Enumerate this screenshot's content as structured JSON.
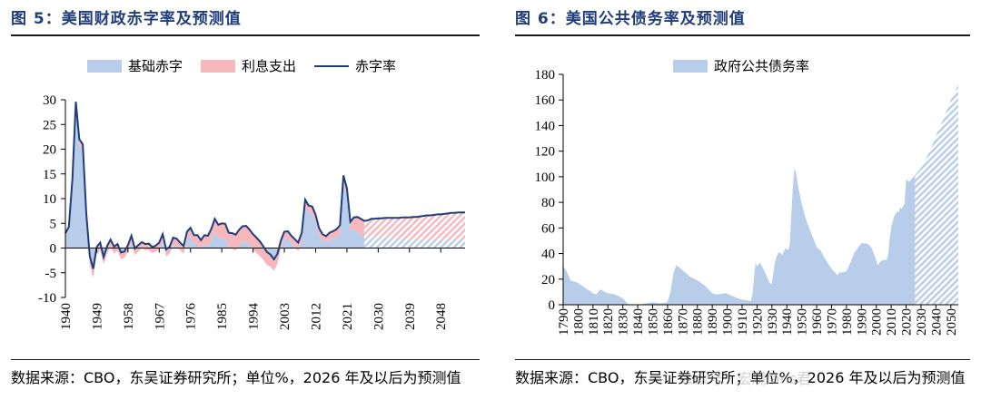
{
  "left": {
    "title": "图 5：美国财政赤字率及预测值",
    "source": "数据来源：CBO，东吴证券研究所；单位%，2026 年及以后为预测值",
    "legend": [
      {
        "label": "基础赤字",
        "color": "#b8cde9",
        "kind": "area"
      },
      {
        "label": "利息支出",
        "color": "#f6b8bd",
        "kind": "area"
      },
      {
        "label": "赤字率",
        "color": "#1f3d7a",
        "kind": "line"
      }
    ]
  },
  "right": {
    "title": "图 6：美国公共债务率及预测值",
    "source": "数据来源：CBO，东吴证券研究所；单位%，2026 年及以后为预测值",
    "legend": [
      {
        "label": "政府公共债务率",
        "color": "#b8cde9",
        "kind": "area"
      }
    ]
  },
  "watermark": "公众号 · 宏观fans君",
  "chart_data": [
    {
      "type": "area",
      "ylim": [
        -10,
        30
      ],
      "yticks": [
        -10,
        -5,
        0,
        5,
        10,
        15,
        20,
        25,
        30
      ],
      "xlim": [
        1940,
        2055
      ],
      "xticks": [
        "1940",
        "1949",
        "1958",
        "1967",
        "1976",
        "1985",
        "1994",
        "2003",
        "2012",
        "2021",
        "2030",
        "2039",
        "2048"
      ],
      "forecast_start": 2026,
      "colors": {
        "primary": "#b8cde9",
        "interest": "#f6b8bd",
        "line": "#1f3d7a"
      },
      "series": [
        {
          "name": "赤字率",
          "points": [
            [
              1940,
              3
            ],
            [
              1941,
              4.3
            ],
            [
              1942,
              13.9
            ],
            [
              1943,
              29.6
            ],
            [
              1944,
              22
            ],
            [
              1945,
              21
            ],
            [
              1946,
              7
            ],
            [
              1947,
              -1.6
            ],
            [
              1948,
              -4.2
            ],
            [
              1949,
              0.2
            ],
            [
              1950,
              1.1
            ],
            [
              1951,
              -1.8
            ],
            [
              1952,
              0.4
            ],
            [
              1953,
              1.7
            ],
            [
              1954,
              0.3
            ],
            [
              1955,
              0.8
            ],
            [
              1956,
              -0.9
            ],
            [
              1957,
              -0.7
            ],
            [
              1958,
              0.6
            ],
            [
              1959,
              2.5
            ],
            [
              1960,
              -0.1
            ],
            [
              1961,
              0.6
            ],
            [
              1962,
              1.2
            ],
            [
              1963,
              0.8
            ],
            [
              1964,
              0.9
            ],
            [
              1965,
              0.2
            ],
            [
              1966,
              0.5
            ],
            [
              1967,
              1.1
            ],
            [
              1968,
              2.8
            ],
            [
              1969,
              -0.3
            ],
            [
              1970,
              0.3
            ],
            [
              1971,
              2.1
            ],
            [
              1972,
              1.9
            ],
            [
              1973,
              1.1
            ],
            [
              1974,
              0.4
            ],
            [
              1975,
              3.3
            ],
            [
              1976,
              4.1
            ],
            [
              1977,
              2.6
            ],
            [
              1978,
              2.6
            ],
            [
              1979,
              1.6
            ],
            [
              1980,
              2.6
            ],
            [
              1981,
              2.5
            ],
            [
              1982,
              3.9
            ],
            [
              1983,
              5.9
            ],
            [
              1984,
              4.7
            ],
            [
              1985,
              5
            ],
            [
              1986,
              4.9
            ],
            [
              1987,
              3.1
            ],
            [
              1988,
              3
            ],
            [
              1989,
              2.7
            ],
            [
              1990,
              3.7
            ],
            [
              1991,
              4.4
            ],
            [
              1992,
              4.5
            ],
            [
              1993,
              3.7
            ],
            [
              1994,
              2.8
            ],
            [
              1995,
              2.1
            ],
            [
              1996,
              1.3
            ],
            [
              1997,
              0.3
            ],
            [
              1998,
              -0.8
            ],
            [
              1999,
              -1.3
            ],
            [
              2000,
              -2.3
            ],
            [
              2001,
              -1.2
            ],
            [
              2002,
              1.5
            ],
            [
              2003,
              3.3
            ],
            [
              2004,
              3.4
            ],
            [
              2005,
              2.5
            ],
            [
              2006,
              1.8
            ],
            [
              2007,
              1.1
            ],
            [
              2008,
              3.1
            ],
            [
              2009,
              9.8
            ],
            [
              2010,
              8.6
            ],
            [
              2011,
              8.4
            ],
            [
              2012,
              6.7
            ],
            [
              2013,
              4
            ],
            [
              2014,
              2.8
            ],
            [
              2015,
              2.4
            ],
            [
              2016,
              3.1
            ],
            [
              2017,
              3.4
            ],
            [
              2018,
              3.8
            ],
            [
              2019,
              4.6
            ],
            [
              2020,
              14.7
            ],
            [
              2021,
              12.1
            ],
            [
              2022,
              5.3
            ],
            [
              2023,
              6.2
            ],
            [
              2024,
              6.3
            ],
            [
              2025,
              5.9
            ],
            [
              2026,
              5.5
            ],
            [
              2027,
              5.6
            ],
            [
              2028,
              5.9
            ],
            [
              2029,
              5.9
            ],
            [
              2030,
              6
            ],
            [
              2031,
              6
            ],
            [
              2032,
              6.1
            ],
            [
              2033,
              6.1
            ],
            [
              2034,
              6.1
            ],
            [
              2035,
              6.1
            ],
            [
              2036,
              6.1
            ],
            [
              2037,
              6.2
            ],
            [
              2038,
              6.2
            ],
            [
              2039,
              6.2
            ],
            [
              2040,
              6.3
            ],
            [
              2041,
              6.3
            ],
            [
              2042,
              6.4
            ],
            [
              2043,
              6.5
            ],
            [
              2044,
              6.6
            ],
            [
              2045,
              6.6
            ],
            [
              2046,
              6.7
            ],
            [
              2047,
              6.8
            ],
            [
              2048,
              6.8
            ],
            [
              2049,
              6.9
            ],
            [
              2050,
              7
            ],
            [
              2051,
              7.1
            ],
            [
              2052,
              7.1
            ],
            [
              2053,
              7.2
            ],
            [
              2054,
              7.2
            ],
            [
              2055,
              7.2
            ]
          ]
        },
        {
          "name": "利息支出",
          "points": [
            [
              1940,
              0.9
            ],
            [
              1942,
              0.7
            ],
            [
              1944,
              1.2
            ],
            [
              1946,
              1.7
            ],
            [
              1948,
              1.8
            ],
            [
              1950,
              1.5
            ],
            [
              1955,
              1.3
            ],
            [
              1960,
              1.3
            ],
            [
              1965,
              1.2
            ],
            [
              1970,
              1.4
            ],
            [
              1975,
              1.6
            ],
            [
              1980,
              1.9
            ],
            [
              1983,
              2.6
            ],
            [
              1985,
              3
            ],
            [
              1990,
              3.2
            ],
            [
              1995,
              3.1
            ],
            [
              2000,
              2.3
            ],
            [
              2003,
              1.4
            ],
            [
              2007,
              1.7
            ],
            [
              2010,
              1.5
            ],
            [
              2013,
              1.3
            ],
            [
              2016,
              1.4
            ],
            [
              2019,
              1.8
            ],
            [
              2020,
              1.6
            ],
            [
              2021,
              1.6
            ],
            [
              2022,
              1.9
            ],
            [
              2023,
              2.4
            ],
            [
              2024,
              3.1
            ],
            [
              2025,
              3.2
            ],
            [
              2030,
              3.8
            ],
            [
              2035,
              4.1
            ],
            [
              2040,
              4.5
            ],
            [
              2045,
              4.9
            ],
            [
              2050,
              5.2
            ],
            [
              2055,
              5.4
            ]
          ]
        }
      ]
    },
    {
      "type": "area",
      "ylim": [
        0,
        180
      ],
      "yticks": [
        0,
        20,
        40,
        60,
        80,
        100,
        120,
        140,
        160,
        180
      ],
      "xlim": [
        1790,
        2055
      ],
      "xticks": [
        "1790",
        "1800",
        "1810",
        "1820",
        "1830",
        "1840",
        "1850",
        "1860",
        "1870",
        "1880",
        "1890",
        "1900",
        "1910",
        "1920",
        "1930",
        "1940",
        "1950",
        "1960",
        "1970",
        "1980",
        "1990",
        "2000",
        "2010",
        "2020",
        "2030",
        "2040",
        "2050"
      ],
      "forecast_start": 2026,
      "colors": {
        "fill": "#b8cde9"
      },
      "series": [
        {
          "name": "政府公共债务率",
          "points": [
            [
              1790,
              30
            ],
            [
              1792,
              27
            ],
            [
              1795,
              19
            ],
            [
              1800,
              17
            ],
            [
              1805,
              13
            ],
            [
              1810,
              9
            ],
            [
              1812,
              8
            ],
            [
              1815,
              12
            ],
            [
              1818,
              10
            ],
            [
              1820,
              9
            ],
            [
              1825,
              8
            ],
            [
              1830,
              5
            ],
            [
              1833,
              1
            ],
            [
              1835,
              0
            ],
            [
              1840,
              0
            ],
            [
              1845,
              1
            ],
            [
              1850,
              2
            ],
            [
              1855,
              1
            ],
            [
              1860,
              2
            ],
            [
              1862,
              10
            ],
            [
              1864,
              25
            ],
            [
              1866,
              31
            ],
            [
              1870,
              27
            ],
            [
              1875,
              22
            ],
            [
              1880,
              19
            ],
            [
              1885,
              15
            ],
            [
              1890,
              9
            ],
            [
              1893,
              8
            ],
            [
              1899,
              9
            ],
            [
              1905,
              6
            ],
            [
              1910,
              4
            ],
            [
              1916,
              3
            ],
            [
              1917,
              9
            ],
            [
              1919,
              33
            ],
            [
              1920,
              30
            ],
            [
              1922,
              33
            ],
            [
              1925,
              26
            ],
            [
              1929,
              16
            ],
            [
              1930,
              17
            ],
            [
              1932,
              33
            ],
            [
              1934,
              40
            ],
            [
              1935,
              41
            ],
            [
              1937,
              39
            ],
            [
              1939,
              44
            ],
            [
              1941,
              43
            ],
            [
              1942,
              47
            ],
            [
              1943,
              70
            ],
            [
              1944,
              91
            ],
            [
              1945,
              106
            ],
            [
              1946,
              104
            ],
            [
              1948,
              90
            ],
            [
              1950,
              79
            ],
            [
              1953,
              66
            ],
            [
              1956,
              57
            ],
            [
              1960,
              45
            ],
            [
              1963,
              42
            ],
            [
              1965,
              37
            ],
            [
              1970,
              28
            ],
            [
              1974,
              23
            ],
            [
              1975,
              25
            ],
            [
              1980,
              26
            ],
            [
              1983,
              34
            ],
            [
              1985,
              40
            ],
            [
              1988,
              45
            ],
            [
              1990,
              48
            ],
            [
              1993,
              48
            ],
            [
              1995,
              47
            ],
            [
              1997,
              44
            ],
            [
              1999,
              38
            ],
            [
              2001,
              31
            ],
            [
              2003,
              34
            ],
            [
              2005,
              35
            ],
            [
              2007,
              35
            ],
            [
              2008,
              39
            ],
            [
              2009,
              52
            ],
            [
              2010,
              60
            ],
            [
              2011,
              65
            ],
            [
              2012,
              69
            ],
            [
              2013,
              71
            ],
            [
              2014,
              73
            ],
            [
              2015,
              72
            ],
            [
              2016,
              76
            ],
            [
              2017,
              75
            ],
            [
              2018,
              77
            ],
            [
              2019,
              79
            ],
            [
              2020,
              98
            ],
            [
              2021,
              97
            ],
            [
              2022,
              96
            ],
            [
              2023,
              97
            ],
            [
              2024,
              99
            ],
            [
              2025,
              100
            ],
            [
              2030,
              107
            ],
            [
              2035,
              118
            ],
            [
              2040,
              132
            ],
            [
              2045,
              145
            ],
            [
              2050,
              160
            ],
            [
              2055,
              172
            ]
          ]
        }
      ]
    }
  ]
}
